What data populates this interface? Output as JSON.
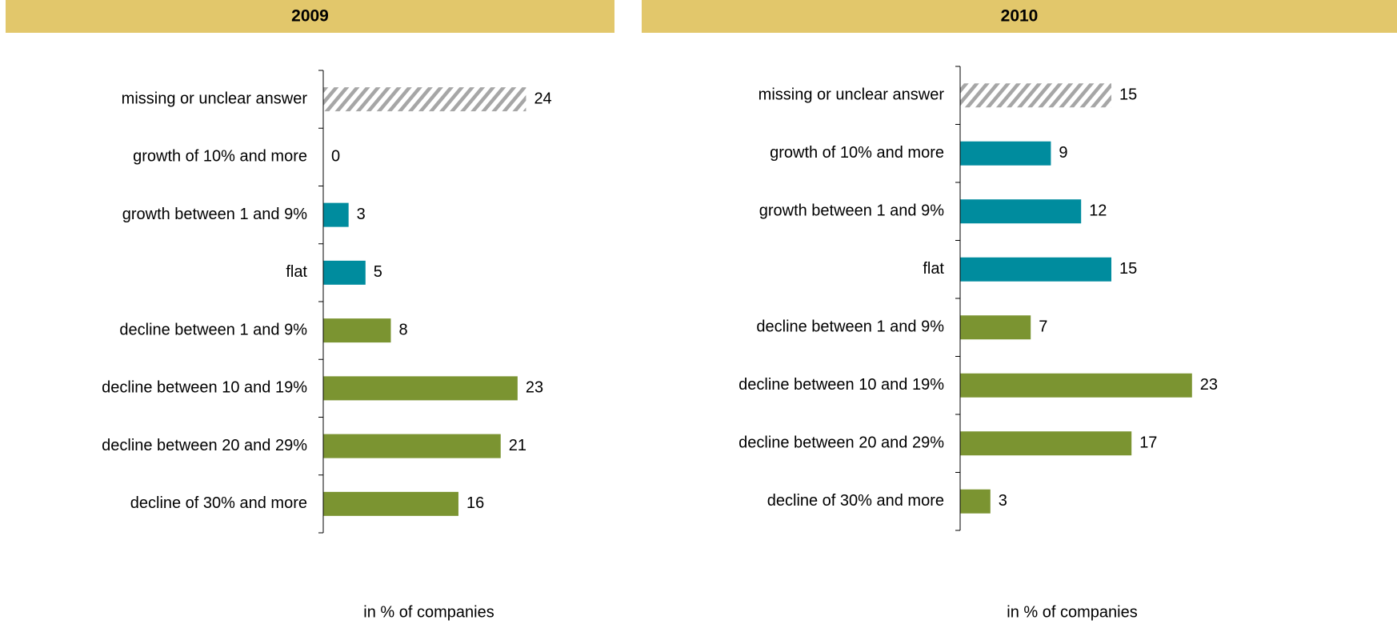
{
  "chart_data": [
    {
      "type": "bar",
      "orientation": "horizontal",
      "title": "2009",
      "categories": [
        "missing or unclear answer",
        "growth of 10% and more",
        "growth between 1 and 9%",
        "flat",
        "decline between 1 and 9%",
        "decline between 10 and 19%",
        "decline between 20 and 29%",
        "decline of 30% and more"
      ],
      "values": [
        24,
        0,
        3,
        5,
        8,
        23,
        21,
        16
      ],
      "colors": [
        "#a6a6a6",
        "#008c9e",
        "#008c9e",
        "#008c9e",
        "#7b9431",
        "#7b9431",
        "#7b9431",
        "#7b9431"
      ],
      "hatched": [
        true,
        false,
        false,
        false,
        false,
        false,
        false,
        false
      ],
      "xlim": [
        0,
        25
      ],
      "x_label": "in % of companies"
    },
    {
      "type": "bar",
      "orientation": "horizontal",
      "title": "2010",
      "categories": [
        "missing or unclear answer",
        "growth of 10% and more",
        "growth between 1 and 9%",
        "flat",
        "decline between 1 and 9%",
        "decline between 10 and 19%",
        "decline between 20 and 29%",
        "decline of 30% and more"
      ],
      "values": [
        15,
        9,
        12,
        15,
        7,
        23,
        17,
        3
      ],
      "colors": [
        "#a6a6a6",
        "#008c9e",
        "#008c9e",
        "#008c9e",
        "#7b9431",
        "#7b9431",
        "#7b9431",
        "#7b9431"
      ],
      "hatched": [
        true,
        false,
        false,
        false,
        false,
        false,
        false,
        false
      ],
      "xlim": [
        0,
        25
      ],
      "x_label": "in % of companies"
    }
  ]
}
